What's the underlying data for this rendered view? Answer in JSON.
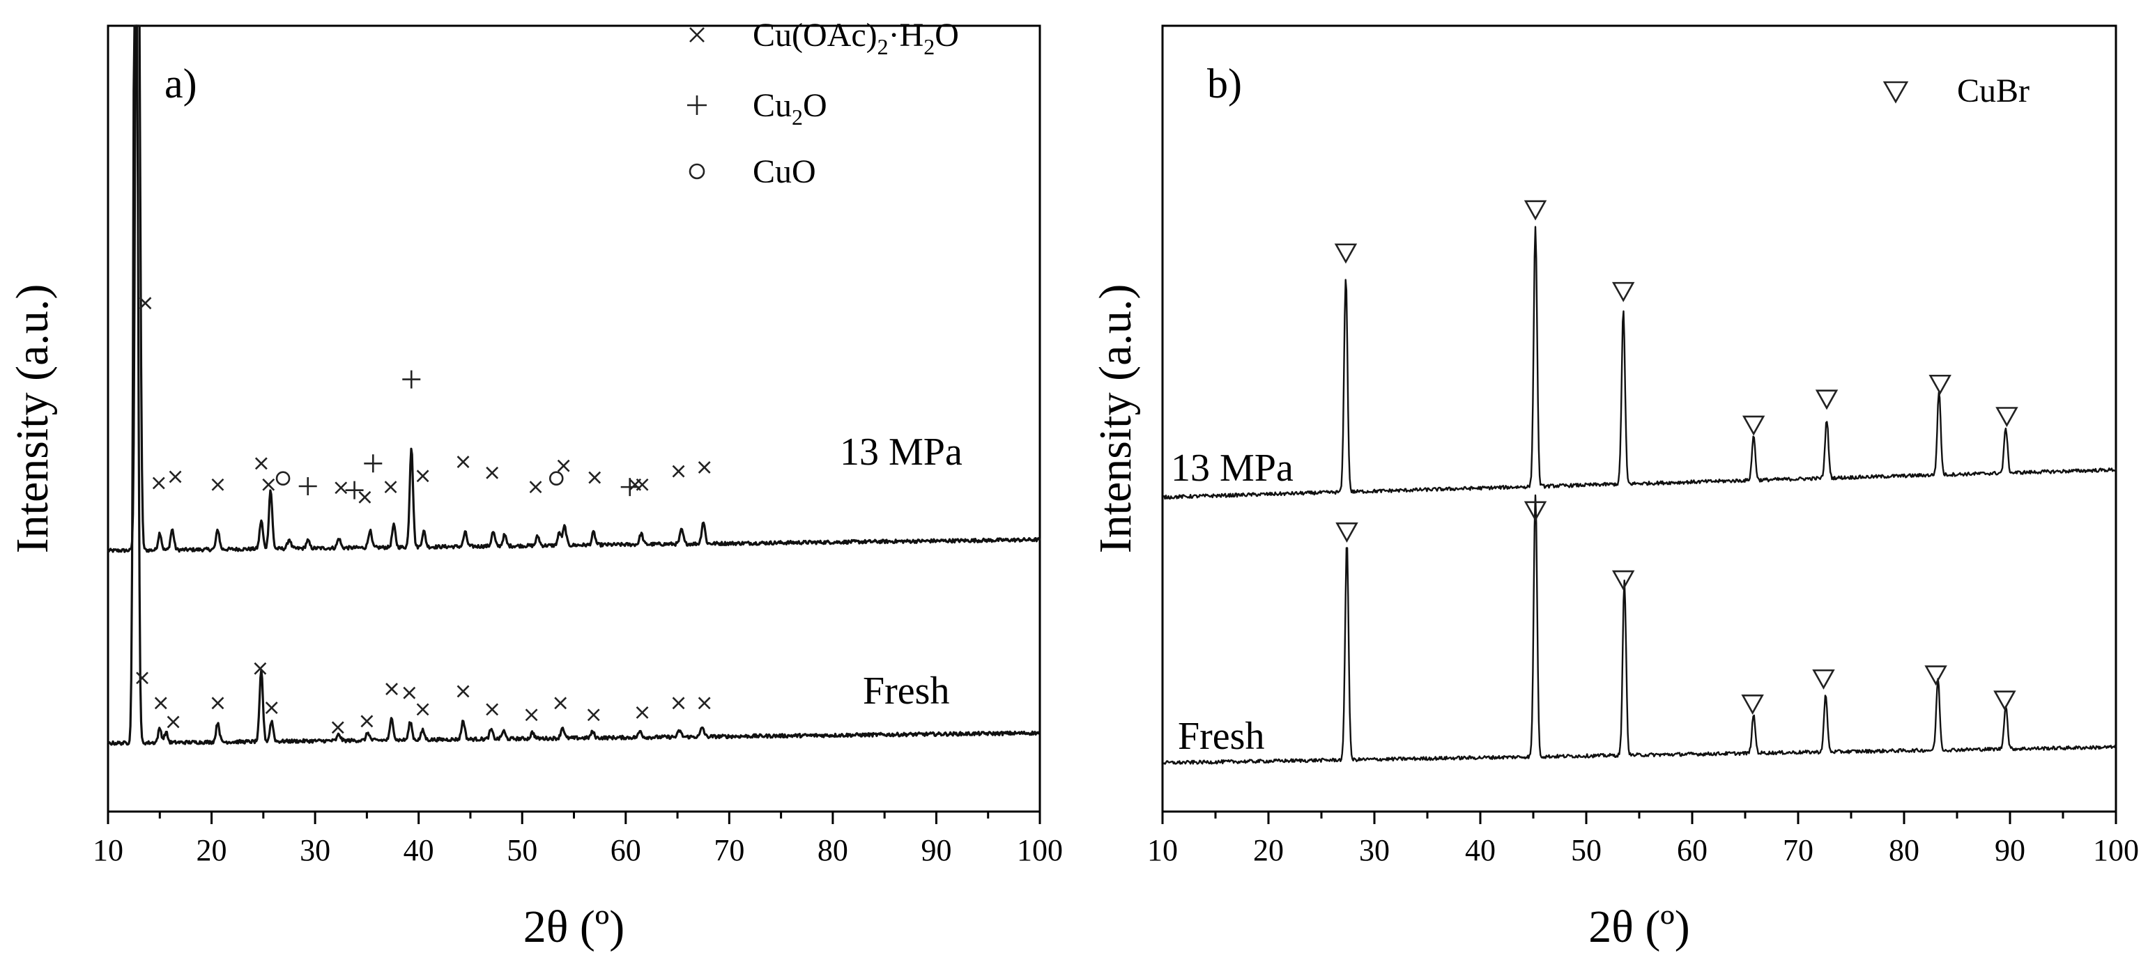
{
  "chart_data": [
    {
      "type": "line",
      "panel_label": "a)",
      "xlabel": "2θ (º)",
      "ylabel": "Intensity (a.u.)",
      "xlim": [
        10,
        100
      ],
      "ylim": [
        0,
        100
      ],
      "xticks": [
        "10",
        "20",
        "30",
        "40",
        "50",
        "60",
        "70",
        "80",
        "90",
        "100"
      ],
      "legend": [
        {
          "marker": "×",
          "label": "Cu(OAc)",
          "sub": "2",
          "label2": "·H",
          "sub2": "2",
          "label3": "O"
        },
        {
          "marker": "+",
          "label": "Cu",
          "sub": "2",
          "label2": "O",
          "sub2": "",
          "label3": ""
        },
        {
          "marker": "○",
          "label": "CuO",
          "sub": "",
          "label2": "",
          "sub2": "",
          "label3": ""
        }
      ],
      "series": [
        {
          "name": "13 MPa",
          "baseline": 33.2,
          "end_baseline": 34.6,
          "peaks": [
            [
              12.8,
              100
            ],
            [
              13.0,
              42
            ],
            [
              15.0,
              2.2
            ],
            [
              16.2,
              2.6
            ],
            [
              20.6,
              2.5
            ],
            [
              24.8,
              3.6
            ],
            [
              25.7,
              7.5
            ],
            [
              27.5,
              1.2
            ],
            [
              29.3,
              1.0
            ],
            [
              32.3,
              1.2
            ],
            [
              35.3,
              2.2
            ],
            [
              37.6,
              2.8
            ],
            [
              39.3,
              12.8
            ],
            [
              40.5,
              2.0
            ],
            [
              44.5,
              1.8
            ],
            [
              47.2,
              1.8
            ],
            [
              48.3,
              1.4
            ],
            [
              51.5,
              1.2
            ],
            [
              53.6,
              1.6
            ],
            [
              54.1,
              2.4
            ],
            [
              56.9,
              1.6
            ],
            [
              61.5,
              1.4
            ],
            [
              65.4,
              1.8
            ],
            [
              67.5,
              2.8
            ]
          ],
          "markers": {
            "cross": [
              [
                13.6,
                64.7
              ],
              [
                14.9,
                41.8
              ],
              [
                16.5,
                42.6
              ],
              [
                20.6,
                41.6
              ],
              [
                24.8,
                44.3
              ],
              [
                25.5,
                41.6
              ],
              [
                32.5,
                41.2
              ],
              [
                34.8,
                40.0
              ],
              [
                37.3,
                41.3
              ],
              [
                40.4,
                42.7
              ],
              [
                44.3,
                44.5
              ],
              [
                47.1,
                43.1
              ],
              [
                51.3,
                41.3
              ],
              [
                54.0,
                44.0
              ],
              [
                57.0,
                42.5
              ],
              [
                60.9,
                41.6
              ],
              [
                61.6,
                41.6
              ],
              [
                65.1,
                43.3
              ],
              [
                67.6,
                43.8
              ]
            ],
            "plus": [
              [
                29.3,
                41.4
              ],
              [
                33.8,
                40.9
              ],
              [
                35.6,
                44.3
              ],
              [
                39.3,
                55.0
              ],
              [
                60.4,
                41.3
              ]
            ],
            "circle": [
              [
                26.9,
                42.4
              ],
              [
                53.3,
                42.4
              ]
            ]
          }
        },
        {
          "name": "Fresh",
          "baseline": 8.7,
          "end_baseline": 10.0,
          "peaks": [
            [
              12.6,
              100
            ],
            [
              12.8,
              55
            ],
            [
              15.0,
              1.8
            ],
            [
              15.6,
              1.3
            ],
            [
              20.6,
              2.5
            ],
            [
              24.8,
              9.0
            ],
            [
              25.8,
              2.6
            ],
            [
              32.3,
              0.8
            ],
            [
              35.1,
              1.0
            ],
            [
              37.4,
              2.8
            ],
            [
              39.2,
              2.3
            ],
            [
              40.4,
              1.2
            ],
            [
              44.3,
              2.4
            ],
            [
              47.0,
              1.2
            ],
            [
              48.2,
              1.0
            ],
            [
              51.0,
              0.8
            ],
            [
              53.9,
              1.4
            ],
            [
              56.8,
              0.8
            ],
            [
              61.4,
              0.8
            ],
            [
              65.2,
              0.8
            ],
            [
              67.4,
              1.2
            ]
          ],
          "markers": {
            "cross": [
              [
                13.3,
                17.0
              ],
              [
                15.1,
                13.8
              ],
              [
                16.3,
                11.4
              ],
              [
                20.6,
                13.8
              ],
              [
                24.7,
                18.2
              ],
              [
                25.8,
                13.2
              ],
              [
                32.2,
                10.7
              ],
              [
                35.0,
                11.5
              ],
              [
                37.4,
                15.6
              ],
              [
                39.1,
                15.1
              ],
              [
                40.4,
                13.0
              ],
              [
                44.3,
                15.3
              ],
              [
                47.1,
                13.0
              ],
              [
                50.9,
                12.3
              ],
              [
                53.7,
                13.8
              ],
              [
                56.9,
                12.3
              ],
              [
                61.6,
                12.6
              ],
              [
                65.1,
                13.8
              ],
              [
                67.6,
                13.8
              ]
            ],
            "plus": [],
            "circle": []
          }
        }
      ]
    },
    {
      "type": "line",
      "panel_label": "b)",
      "xlabel": "2θ (º)",
      "ylabel": "Intensity (a.u.)",
      "xlim": [
        10,
        100
      ],
      "ylim": [
        0,
        100
      ],
      "xticks": [
        "10",
        "20",
        "30",
        "40",
        "50",
        "60",
        "70",
        "80",
        "90",
        "100"
      ],
      "legend": [
        {
          "marker": "▽",
          "label": "CuBr",
          "sub": "",
          "label2": "",
          "sub2": "",
          "label3": ""
        }
      ],
      "series": [
        {
          "name": "13 MPa",
          "baseline": 40.0,
          "end_baseline": 43.5,
          "peaks": [
            [
              27.3,
              27.4
            ],
            [
              45.2,
              33.0
            ],
            [
              53.5,
              22.1
            ],
            [
              65.8,
              5.6
            ],
            [
              72.7,
              7.4
            ],
            [
              83.3,
              10.6
            ],
            [
              89.6,
              5.8
            ]
          ],
          "markers": {
            "triangle": [
              [
                27.3,
                71.2
              ],
              [
                45.2,
                76.7
              ],
              [
                53.5,
                66.3
              ],
              [
                65.8,
                49.3
              ],
              [
                72.7,
                52.6
              ],
              [
                83.4,
                54.5
              ],
              [
                89.7,
                50.4
              ]
            ]
          }
        },
        {
          "name": "Fresh",
          "baseline": 6.2,
          "end_baseline": 8.2,
          "peaks": [
            [
              27.4,
              27.8
            ],
            [
              45.2,
              33.4
            ],
            [
              53.6,
              22.1
            ],
            [
              65.8,
              4.8
            ],
            [
              72.6,
              7.2
            ],
            [
              83.2,
              9.0
            ],
            [
              89.6,
              5.6
            ]
          ],
          "markers": {
            "triangle": [
              [
                27.4,
                35.7
              ],
              [
                45.2,
                38.4
              ],
              [
                53.5,
                29.6
              ],
              [
                65.7,
                13.8
              ],
              [
                72.4,
                17.0
              ],
              [
                83.0,
                17.5
              ],
              [
                89.5,
                14.3
              ]
            ]
          }
        }
      ]
    }
  ]
}
